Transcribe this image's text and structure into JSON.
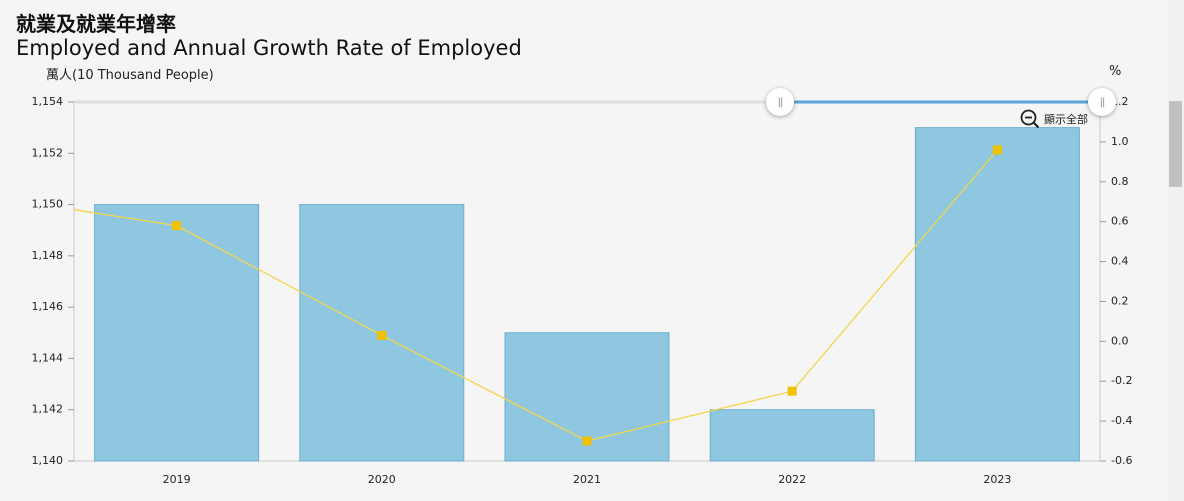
{
  "header": {
    "title_zh": "就業及就業年增率",
    "title_en": "Employed and Annual Growth Rate of Employed"
  },
  "axes": {
    "left_label": "萬人(10 Thousand People)",
    "right_label": "%"
  },
  "zoom": {
    "label": "顯示全部",
    "icon": "zoom-out-icon"
  },
  "range_selector": {
    "handle_glyph": "||"
  },
  "colors": {
    "bar_fill": "#8fc7e1",
    "bar_stroke": "#6aaed0",
    "line": "#f2d64b",
    "marker": "#f2c200",
    "range_track": "#e0e0e0",
    "range_selected": "#5ba3d9",
    "axis": "#cccccc",
    "background": "#f5f5f5"
  },
  "chart_data": {
    "type": "bar",
    "categories": [
      "2019",
      "2020",
      "2021",
      "2022",
      "2023"
    ],
    "series": [
      {
        "type": "bar",
        "axis": "left",
        "values": [
          1150,
          1150,
          1145,
          1142,
          1153
        ]
      },
      {
        "type": "line",
        "axis": "right",
        "values": [
          0.58,
          0.03,
          -0.5,
          -0.25,
          0.96
        ],
        "lead_in_value": 0.66
      }
    ],
    "ylim": [
      1140,
      1154
    ],
    "yticks": [
      "1,140",
      "1,142",
      "1,144",
      "1,146",
      "1,148",
      "1,150",
      "1,152",
      "1,154"
    ],
    "y2lim": [
      -0.6,
      1.2
    ],
    "y2ticks": [
      "-0.6",
      "-0.4",
      "-0.2",
      "0.0",
      "0.2",
      "0.4",
      "0.6",
      "0.8",
      "1.0",
      "1.2"
    ],
    "ylabel": "萬人(10 Thousand People)",
    "y2label": "%",
    "range_selected_fraction": [
      0.7,
      1.0
    ]
  }
}
